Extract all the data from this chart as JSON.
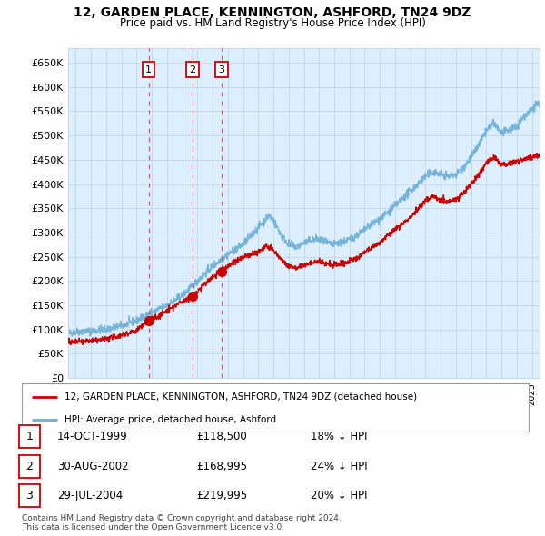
{
  "title": "12, GARDEN PLACE, KENNINGTON, ASHFORD, TN24 9DZ",
  "subtitle": "Price paid vs. HM Land Registry's House Price Index (HPI)",
  "ylabel_ticks": [
    "£0",
    "£50K",
    "£100K",
    "£150K",
    "£200K",
    "£250K",
    "£300K",
    "£350K",
    "£400K",
    "£450K",
    "£500K",
    "£550K",
    "£600K",
    "£650K"
  ],
  "ytick_values": [
    0,
    50000,
    100000,
    150000,
    200000,
    250000,
    300000,
    350000,
    400000,
    450000,
    500000,
    550000,
    600000,
    650000
  ],
  "xmin": 1994.5,
  "xmax": 2025.5,
  "ymin": 0,
  "ymax": 680000,
  "sale_dates": [
    1999.79,
    2002.66,
    2004.58
  ],
  "sale_prices": [
    118500,
    168995,
    219995
  ],
  "sale_labels": [
    "1",
    "2",
    "3"
  ],
  "hpi_color": "#6baed6",
  "sale_color": "#cc0000",
  "grid_color": "#c8d8e8",
  "background_color": "#ddeeff",
  "legend_label_sale": "12, GARDEN PLACE, KENNINGTON, ASHFORD, TN24 9DZ (detached house)",
  "legend_label_hpi": "HPI: Average price, detached house, Ashford",
  "table_rows": [
    {
      "num": "1",
      "date": "14-OCT-1999",
      "price": "£118,500",
      "pct": "18% ↓ HPI"
    },
    {
      "num": "2",
      "date": "30-AUG-2002",
      "price": "£168,995",
      "pct": "24% ↓ HPI"
    },
    {
      "num": "3",
      "date": "29-JUL-2004",
      "price": "£219,995",
      "pct": "20% ↓ HPI"
    }
  ],
  "footer": "Contains HM Land Registry data © Crown copyright and database right 2024.\nThis data is licensed under the Open Government Licence v3.0.",
  "hpi_anchors": [
    [
      1994.5,
      92000
    ],
    [
      1995.0,
      95000
    ],
    [
      1996.0,
      97000
    ],
    [
      1997.0,
      100000
    ],
    [
      1998.0,
      107000
    ],
    [
      1999.0,
      118000
    ],
    [
      2000.0,
      135000
    ],
    [
      2001.0,
      150000
    ],
    [
      2002.0,
      170000
    ],
    [
      2003.0,
      200000
    ],
    [
      2004.0,
      230000
    ],
    [
      2005.0,
      255000
    ],
    [
      2006.0,
      275000
    ],
    [
      2007.0,
      310000
    ],
    [
      2007.7,
      335000
    ],
    [
      2008.0,
      325000
    ],
    [
      2008.5,
      295000
    ],
    [
      2009.0,
      275000
    ],
    [
      2009.5,
      270000
    ],
    [
      2010.0,
      278000
    ],
    [
      2010.5,
      285000
    ],
    [
      2011.0,
      285000
    ],
    [
      2011.5,
      278000
    ],
    [
      2012.0,
      275000
    ],
    [
      2012.5,
      280000
    ],
    [
      2013.0,
      285000
    ],
    [
      2013.5,
      295000
    ],
    [
      2014.0,
      305000
    ],
    [
      2014.5,
      318000
    ],
    [
      2015.0,
      328000
    ],
    [
      2015.5,
      340000
    ],
    [
      2016.0,
      355000
    ],
    [
      2016.5,
      370000
    ],
    [
      2017.0,
      385000
    ],
    [
      2017.5,
      400000
    ],
    [
      2018.0,
      415000
    ],
    [
      2018.5,
      425000
    ],
    [
      2019.0,
      420000
    ],
    [
      2019.5,
      415000
    ],
    [
      2020.0,
      420000
    ],
    [
      2020.5,
      435000
    ],
    [
      2021.0,
      455000
    ],
    [
      2021.5,
      480000
    ],
    [
      2022.0,
      510000
    ],
    [
      2022.5,
      525000
    ],
    [
      2023.0,
      505000
    ],
    [
      2023.5,
      510000
    ],
    [
      2024.0,
      520000
    ],
    [
      2024.5,
      540000
    ],
    [
      2025.0,
      555000
    ],
    [
      2025.3,
      565000
    ]
  ],
  "sale_anchors": [
    [
      1994.5,
      72000
    ],
    [
      1995.0,
      74000
    ],
    [
      1996.0,
      76000
    ],
    [
      1997.0,
      80000
    ],
    [
      1998.0,
      88000
    ],
    [
      1999.0,
      98000
    ],
    [
      1999.79,
      118500
    ],
    [
      2000.0,
      122000
    ],
    [
      2000.5,
      128000
    ],
    [
      2001.0,
      138000
    ],
    [
      2001.5,
      148000
    ],
    [
      2002.0,
      158000
    ],
    [
      2002.66,
      168995
    ],
    [
      2003.0,
      178000
    ],
    [
      2003.5,
      195000
    ],
    [
      2004.0,
      208000
    ],
    [
      2004.58,
      219995
    ],
    [
      2005.0,
      230000
    ],
    [
      2005.5,
      240000
    ],
    [
      2006.0,
      248000
    ],
    [
      2006.5,
      255000
    ],
    [
      2007.0,
      260000
    ],
    [
      2007.5,
      272000
    ],
    [
      2008.0,
      262000
    ],
    [
      2008.5,
      245000
    ],
    [
      2009.0,
      230000
    ],
    [
      2009.5,
      228000
    ],
    [
      2010.0,
      232000
    ],
    [
      2010.5,
      238000
    ],
    [
      2011.0,
      240000
    ],
    [
      2011.5,
      235000
    ],
    [
      2012.0,
      232000
    ],
    [
      2012.5,
      236000
    ],
    [
      2013.0,
      240000
    ],
    [
      2013.5,
      248000
    ],
    [
      2014.0,
      258000
    ],
    [
      2014.5,
      270000
    ],
    [
      2015.0,
      280000
    ],
    [
      2015.5,
      292000
    ],
    [
      2016.0,
      305000
    ],
    [
      2016.5,
      318000
    ],
    [
      2017.0,
      332000
    ],
    [
      2017.5,
      348000
    ],
    [
      2018.0,
      365000
    ],
    [
      2018.5,
      375000
    ],
    [
      2019.0,
      368000
    ],
    [
      2019.5,
      362000
    ],
    [
      2020.0,
      368000
    ],
    [
      2020.5,
      382000
    ],
    [
      2021.0,
      400000
    ],
    [
      2021.5,
      420000
    ],
    [
      2022.0,
      445000
    ],
    [
      2022.5,
      455000
    ],
    [
      2023.0,
      440000
    ],
    [
      2023.5,
      442000
    ],
    [
      2024.0,
      448000
    ],
    [
      2024.5,
      452000
    ],
    [
      2025.0,
      455000
    ],
    [
      2025.3,
      458000
    ]
  ]
}
